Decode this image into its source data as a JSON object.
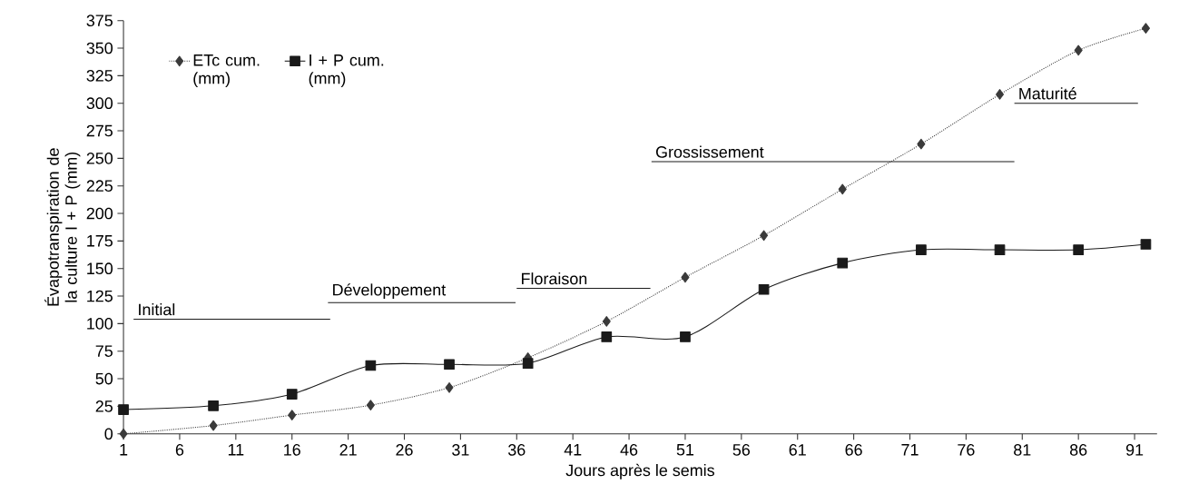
{
  "chart_data": {
    "type": "line",
    "xlabel": "Jours après le semis",
    "ylabel": "Évapotranspiration de la culture I + P (mm)",
    "x": [
      1,
      9,
      16,
      23,
      30,
      37,
      44,
      51,
      58,
      65,
      72,
      79,
      86,
      92
    ],
    "series": [
      {
        "name": "ETc cum. (mm)",
        "color": "#3a3a3a",
        "marker": "diamond",
        "line_style": "dotted",
        "values": [
          0,
          7.5,
          17,
          26,
          42,
          69,
          102,
          142,
          180,
          222,
          263,
          308,
          348,
          368
        ]
      },
      {
        "name": "I + P cum. (mm)",
        "color": "#1a1a1a",
        "marker": "square",
        "line_style": "solid",
        "values": [
          22,
          25.5,
          36,
          62,
          63,
          64,
          88,
          88,
          131,
          155,
          167,
          167,
          167,
          172
        ]
      },
      {
        "type": "line",
        "color": "#1a1a1a",
        "marker": "none",
        "line_style": "solid",
        "x": [
          1.9,
          19.4
        ],
        "values": [
          104,
          104
        ]
      },
      {
        "type": "line",
        "color": "#1a1a1a",
        "marker": "none",
        "line_style": "solid",
        "x": [
          19.2,
          35.9
        ],
        "values": [
          119,
          119
        ]
      },
      {
        "type": "line",
        "color": "#1a1a1a",
        "marker": "none",
        "line_style": "solid",
        "x": [
          36,
          47.9
        ],
        "values": [
          132,
          132
        ]
      },
      {
        "type": "line",
        "color": "#1a1a1a",
        "marker": "none",
        "line_style": "solid",
        "x": [
          48,
          80.3
        ],
        "values": [
          247,
          247
        ]
      },
      {
        "type": "line",
        "color": "#1a1a1a",
        "marker": "none",
        "line_style": "solid",
        "x": [
          80.3,
          91.3
        ],
        "values": [
          300,
          300
        ]
      }
    ],
    "annotations": [
      {
        "text": "Initial",
        "x": 1.9,
        "y": 104
      },
      {
        "text": "Développement",
        "x": 19.2,
        "y": 119
      },
      {
        "text": "Floraison",
        "x": 36,
        "y": 132
      },
      {
        "text": "Grossissement",
        "x": 48,
        "y": 247
      },
      {
        "text": "Maturité",
        "x": 80.3,
        "y": 300
      }
    ],
    "xlim": [
      1,
      93
    ],
    "xticks": [
      1,
      6,
      11,
      16,
      21,
      26,
      31,
      36,
      41,
      46,
      51,
      56,
      61,
      66,
      71,
      76,
      81,
      86,
      91
    ],
    "ylim": [
      0,
      375
    ],
    "yticks": [
      0,
      25,
      50,
      75,
      100,
      125,
      150,
      175,
      200,
      225,
      250,
      275,
      300,
      325,
      350,
      375
    ],
    "grid": false,
    "legend": "top left"
  }
}
